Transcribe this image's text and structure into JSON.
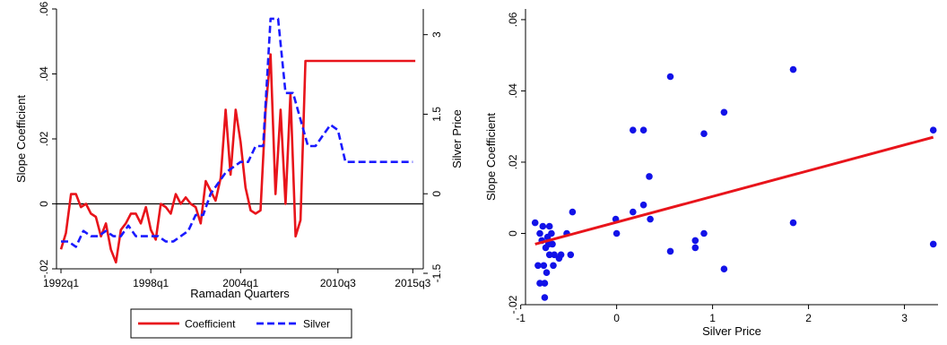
{
  "chart_data": [
    {
      "type": "line",
      "xlabel": "Ramadan Quarters",
      "ylabel": "Slope Coefficient",
      "y2label": "Silver Price",
      "x_ticks": [
        {
          "label": "1992q1",
          "t": 0
        },
        {
          "label": "1998q1",
          "t": 6
        },
        {
          "label": "2004q1",
          "t": 12
        },
        {
          "label": "2010q3",
          "t": 18.5
        },
        {
          "label": "2015q3",
          "t": 23.5
        }
      ],
      "ylim": [
        -0.02,
        0.06
      ],
      "y_ticks": [
        -0.02,
        0,
        0.02,
        0.04,
        0.06
      ],
      "y_tick_labels": [
        "-.02",
        "0",
        ".02",
        ".04",
        ".06"
      ],
      "y2lim": [
        -1.5,
        3.4
      ],
      "y2_ticks": [
        -1.5,
        0,
        1.5,
        3
      ],
      "y2_tick_labels": [
        "-1.5",
        "0",
        "1.5",
        "3"
      ],
      "hline_y": 0,
      "x_label_years": [],
      "series": [
        {
          "name": "Coefficient",
          "axis": "left",
          "color": "#e8141b",
          "dash": "solid",
          "t": [
            0,
            0.33,
            0.67,
            1.0,
            1.33,
            1.67,
            2.0,
            2.33,
            2.67,
            3.0,
            3.33,
            3.67,
            4.0,
            4.33,
            4.67,
            5.0,
            5.33,
            5.67,
            6.0,
            6.33,
            6.67,
            7.0,
            7.33,
            7.67,
            8.0,
            8.33,
            8.67,
            9.0,
            9.33,
            9.67,
            10.0,
            10.33,
            10.67,
            11.0,
            11.33,
            11.67,
            12.0,
            12.33,
            12.67,
            13.0,
            13.33,
            13.67,
            14.0,
            14.33,
            14.67,
            15.0,
            15.33,
            15.67,
            16.0,
            16.33,
            16.67,
            17.0,
            17.33,
            17.67,
            18.0,
            18.33,
            18.67,
            19.0,
            19.33,
            19.67,
            20.0,
            20.33,
            20.67,
            21.0,
            21.33,
            21.67,
            22.0,
            22.33,
            22.67,
            23.0,
            23.33,
            23.67
          ],
          "values": [
            -0.014,
            -0.009,
            0.003,
            0.003,
            -0.001,
            0.0,
            -0.003,
            -0.004,
            -0.01,
            -0.006,
            -0.014,
            -0.018,
            -0.008,
            -0.006,
            -0.003,
            -0.003,
            -0.006,
            -0.001,
            -0.008,
            -0.011,
            0.0,
            -0.001,
            -0.003,
            0.003,
            0.0,
            0.002,
            0.0,
            -0.001,
            -0.006,
            0.007,
            0.004,
            0.001,
            0.008,
            0.029,
            0.009,
            0.029,
            0.019,
            0.005,
            -0.002,
            -0.003,
            -0.002,
            0.029,
            0.046,
            0.003,
            0.029,
            0.0,
            0.034,
            -0.01,
            -0.005,
            0.044,
            0.044,
            0.044,
            0.044,
            0.044,
            0.044,
            0.044,
            0.044,
            0.044,
            0.044,
            0.044,
            0.044,
            0.044,
            0.044,
            0.044,
            0.044,
            0.044,
            0.044,
            0.044,
            0.044,
            0.044,
            0.044,
            0.044
          ]
        },
        {
          "name": "Silver",
          "axis": "right",
          "color": "#1a1aff",
          "dash": "dashed",
          "t": [
            0,
            0.5,
            1.0,
            1.5,
            2.0,
            2.5,
            3.0,
            3.5,
            4.0,
            4.5,
            5.0,
            5.5,
            6.0,
            6.5,
            7.0,
            7.5,
            8.0,
            8.5,
            9.0,
            9.5,
            10.0,
            10.5,
            11.0,
            11.5,
            12.0,
            12.5,
            13.0,
            13.5,
            14.0,
            14.5,
            15.0,
            15.5,
            16.0,
            16.5,
            17.0,
            17.5,
            18.0,
            18.5,
            19.0,
            19.5,
            20.0,
            20.5,
            21.0,
            21.5,
            22.0,
            22.5,
            23.0,
            23.5
          ],
          "values": [
            -0.9,
            -0.9,
            -1.0,
            -0.7,
            -0.8,
            -0.8,
            -0.7,
            -0.8,
            -0.8,
            -0.6,
            -0.8,
            -0.8,
            -0.8,
            -0.8,
            -0.9,
            -0.9,
            -0.8,
            -0.7,
            -0.4,
            -0.4,
            0.0,
            0.2,
            0.4,
            0.5,
            0.6,
            0.6,
            0.9,
            0.9,
            3.3,
            3.3,
            1.9,
            1.9,
            1.4,
            0.9,
            0.9,
            1.1,
            1.3,
            1.2,
            0.6,
            0.6,
            0.6,
            0.6,
            0.6,
            0.6,
            0.6,
            0.6,
            0.6,
            0.6
          ]
        }
      ],
      "legend": {
        "position": "bottom",
        "entries": [
          "Coefficient",
          "Silver"
        ]
      }
    },
    {
      "type": "scatter",
      "xlabel": "Silver Price",
      "ylabel": "Slope Coefficient",
      "xlim": [
        -0.95,
        3.35
      ],
      "ylim": [
        -0.02,
        0.063
      ],
      "x_ticks": [
        -1,
        0,
        1,
        2,
        3
      ],
      "x_tick_labels": [
        "-1",
        "0",
        "1",
        "2",
        "3"
      ],
      "y_ticks": [
        -0.02,
        0,
        0.02,
        0.04,
        0.06
      ],
      "y_tick_labels": [
        "-.02",
        "0",
        ".02",
        ".04",
        ".06"
      ],
      "point_color": "#1212e8",
      "fit_line": {
        "color": "#e8141b",
        "x": [
          -0.85,
          3.3
        ],
        "y": [
          -0.003,
          0.027
        ]
      },
      "points": [
        {
          "x": -0.85,
          "y": 0.003
        },
        {
          "x": -0.82,
          "y": -0.009
        },
        {
          "x": -0.8,
          "y": 0.0
        },
        {
          "x": -0.8,
          "y": -0.014
        },
        {
          "x": -0.78,
          "y": -0.002
        },
        {
          "x": -0.77,
          "y": 0.002
        },
        {
          "x": -0.76,
          "y": -0.009
        },
        {
          "x": -0.75,
          "y": -0.014
        },
        {
          "x": -0.75,
          "y": -0.018
        },
        {
          "x": -0.74,
          "y": -0.004
        },
        {
          "x": -0.73,
          "y": -0.011
        },
        {
          "x": -0.72,
          "y": -0.001
        },
        {
          "x": -0.71,
          "y": -0.003
        },
        {
          "x": -0.7,
          "y": 0.002
        },
        {
          "x": -0.7,
          "y": -0.006
        },
        {
          "x": -0.68,
          "y": 0.0
        },
        {
          "x": -0.67,
          "y": -0.003
        },
        {
          "x": -0.66,
          "y": -0.009
        },
        {
          "x": -0.65,
          "y": -0.006
        },
        {
          "x": -0.6,
          "y": -0.007
        },
        {
          "x": -0.58,
          "y": -0.006
        },
        {
          "x": -0.52,
          "y": 0.0
        },
        {
          "x": -0.48,
          "y": -0.006
        },
        {
          "x": -0.46,
          "y": 0.006
        },
        {
          "x": -0.01,
          "y": 0.004
        },
        {
          "x": 0.0,
          "y": 0.0
        },
        {
          "x": 0.17,
          "y": 0.029
        },
        {
          "x": 0.17,
          "y": 0.006
        },
        {
          "x": 0.28,
          "y": 0.029
        },
        {
          "x": 0.28,
          "y": 0.008
        },
        {
          "x": 0.34,
          "y": 0.016
        },
        {
          "x": 0.35,
          "y": 0.004
        },
        {
          "x": 0.56,
          "y": 0.044
        },
        {
          "x": 0.56,
          "y": -0.005
        },
        {
          "x": 0.82,
          "y": -0.002
        },
        {
          "x": 0.82,
          "y": -0.004
        },
        {
          "x": 0.91,
          "y": 0.028
        },
        {
          "x": 0.91,
          "y": 0.0
        },
        {
          "x": 1.12,
          "y": 0.034
        },
        {
          "x": 1.12,
          "y": -0.01
        },
        {
          "x": 1.84,
          "y": 0.046
        },
        {
          "x": 1.84,
          "y": 0.003
        },
        {
          "x": 3.3,
          "y": 0.029
        },
        {
          "x": 3.3,
          "y": -0.003
        }
      ]
    }
  ]
}
